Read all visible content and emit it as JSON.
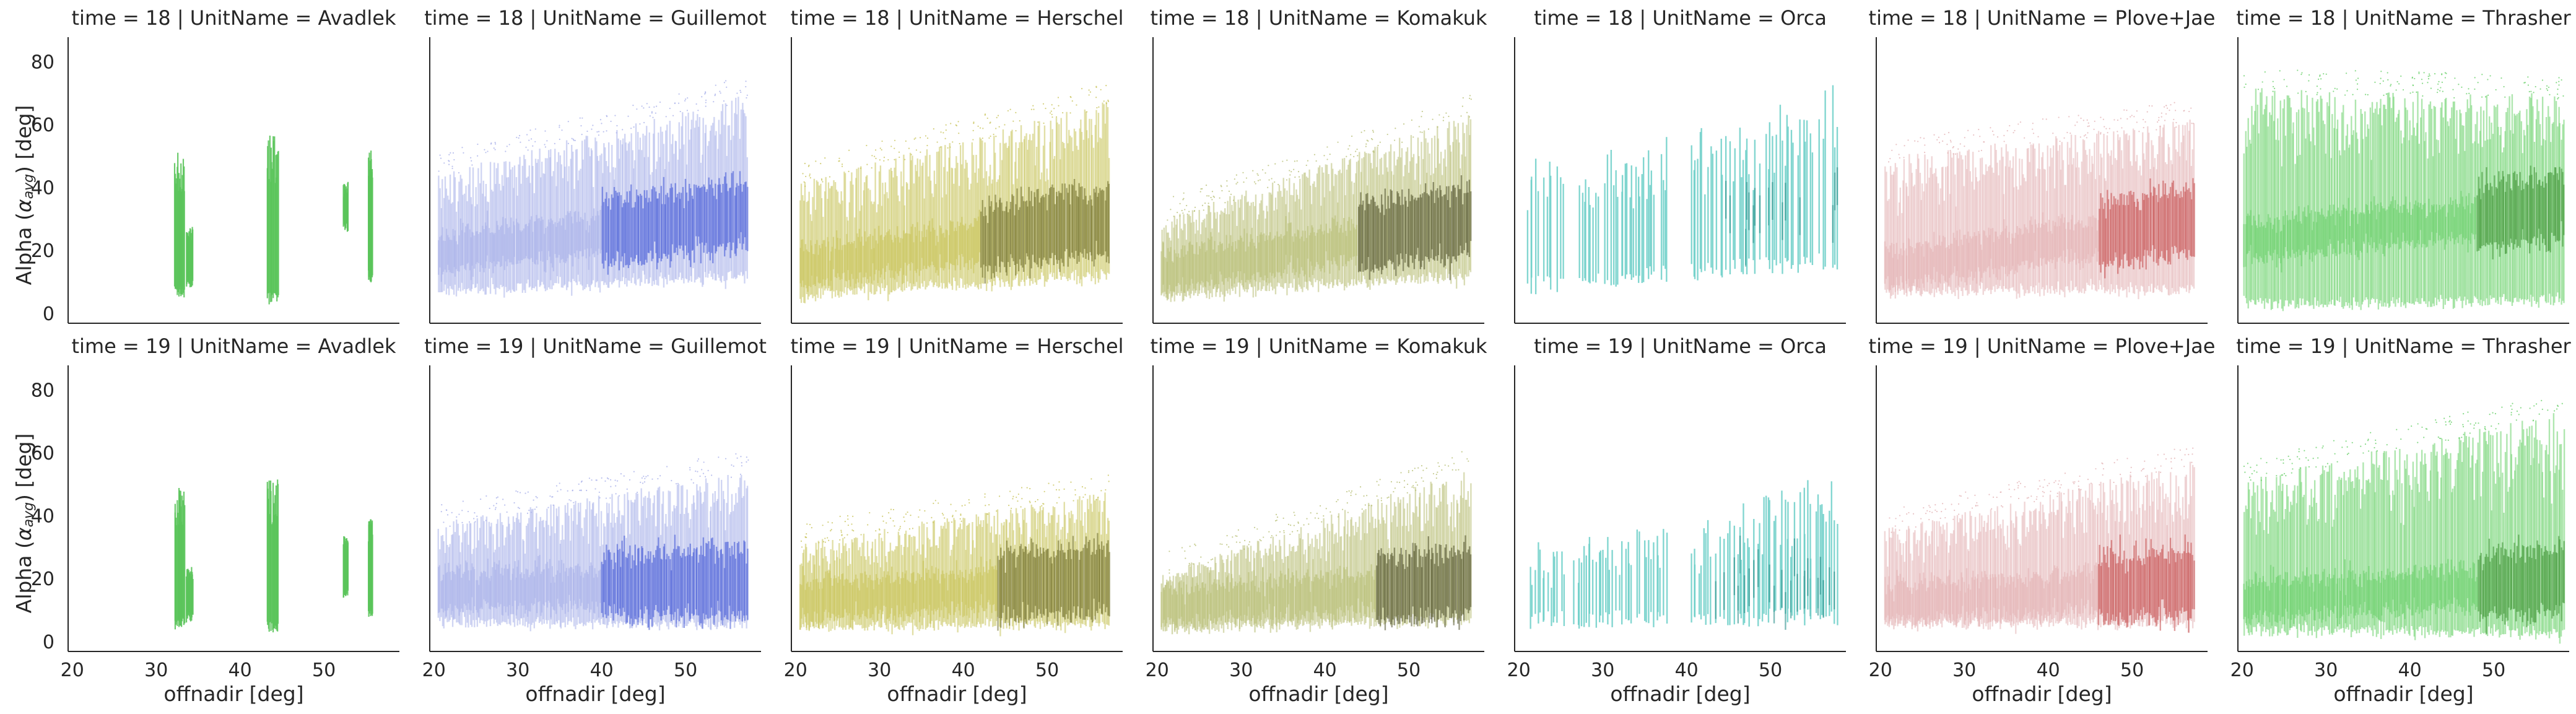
{
  "chart_data": {
    "type": "scatter",
    "description_free": true,
    "xlabel": "offnadir [deg]",
    "ylabel_prefix": "Alpha (",
    "ylabel_symbol": "α",
    "ylabel_sub": "avg",
    "ylabel_suffix": ") [deg]",
    "xlim": [
      19.5,
      59
    ],
    "ylim": [
      -3,
      88
    ],
    "xticks": [
      20,
      30,
      40,
      50
    ],
    "yticks": [
      0,
      20,
      40,
      60,
      80
    ],
    "rows": [
      {
        "time": 18,
        "title_prefix": "time = 18 | UnitName = "
      },
      {
        "time": 19,
        "title_prefix": "time = 19 | UnitName = "
      }
    ],
    "panels": [
      {
        "unit": "Avadlek",
        "color": "#5bc45b",
        "dark": "#2e8a2e",
        "t18": {
          "clusters": [
            {
              "x0": 32.2,
              "x1": 33.4,
              "lo": 5,
              "hi": 52,
              "mid": 24
            },
            {
              "x0": 33.6,
              "x1": 34.4,
              "lo": 8,
              "hi": 28,
              "mid": 18
            },
            {
              "x0": 43.2,
              "x1": 44.6,
              "lo": 3,
              "hi": 57,
              "mid": 26
            },
            {
              "x0": 52.3,
              "x1": 52.9,
              "lo": 26,
              "hi": 42,
              "mid": 32
            },
            {
              "x0": 55.3,
              "x1": 55.8,
              "lo": 10,
              "hi": 52,
              "mid": 28
            }
          ]
        },
        "t19": {
          "clusters": [
            {
              "x0": 32.2,
              "x1": 33.4,
              "lo": 4,
              "hi": 50,
              "mid": 20
            },
            {
              "x0": 33.6,
              "x1": 34.4,
              "lo": 6,
              "hi": 24,
              "mid": 15
            },
            {
              "x0": 43.2,
              "x1": 44.6,
              "lo": 3,
              "hi": 52,
              "mid": 22
            },
            {
              "x0": 52.3,
              "x1": 52.9,
              "lo": 14,
              "hi": 34,
              "mid": 24
            },
            {
              "x0": 55.3,
              "x1": 55.8,
              "lo": 8,
              "hi": 40,
              "mid": 22
            }
          ]
        }
      },
      {
        "unit": "Guillemot",
        "color": "#aab2ea",
        "dark": "#3f56d6",
        "t18": {
          "band": {
            "x0": 20.5,
            "x1": 57.5,
            "lo": [
              7,
              12
            ],
            "hi": [
              45,
              70
            ],
            "mid": [
              18,
              30
            ],
            "dense_from": 40
          }
        },
        "t19": {
          "band": {
            "x0": 20.5,
            "x1": 57.5,
            "lo": [
              6,
              6
            ],
            "hi": [
              38,
              55
            ],
            "mid": [
              15,
              17
            ],
            "dense_from": 40
          }
        }
      },
      {
        "unit": "Herschel",
        "color": "#c9c45c",
        "dark": "#6b6a25",
        "t18": {
          "band": {
            "x0": 20.5,
            "x1": 57.5,
            "lo": [
              6,
              12
            ],
            "hi": [
              42,
              68
            ],
            "mid": [
              14,
              28
            ],
            "dense_from": 42
          }
        },
        "t19": {
          "band": {
            "x0": 20.5,
            "x1": 57.5,
            "lo": [
              5,
              6
            ],
            "hi": [
              32,
              48
            ],
            "mid": [
              12,
              18
            ],
            "dense_from": 44
          }
        }
      },
      {
        "unit": "Komakuk",
        "color": "#b9c078",
        "dark": "#4c4f26",
        "t18": {
          "band": {
            "x0": 20.5,
            "x1": 57.5,
            "lo": [
              6,
              12
            ],
            "hi": [
              30,
              64
            ],
            "mid": [
              12,
              28
            ],
            "dense_from": 44
          }
        },
        "t19": {
          "band": {
            "x0": 20.5,
            "x1": 57.5,
            "lo": [
              5,
              7
            ],
            "hi": [
              22,
              56
            ],
            "mid": [
              10,
              17
            ],
            "dense_from": 46
          }
        }
      },
      {
        "unit": "Orca",
        "color": "#6ccfc8",
        "dark": "#2b8f8a",
        "t18": {
          "strips": {
            "x0": 21,
            "x1": 58,
            "lo": [
              6,
              14
            ],
            "hi": [
              50,
              74
            ],
            "mid": [
              26,
              34
            ],
            "gaps": [
              [
                25.5,
                26.5
              ],
              [
                37.8,
                40.5
              ]
            ]
          }
        },
        "t19": {
          "strips": {
            "x0": 21,
            "x1": 58,
            "lo": [
              4,
              5
            ],
            "hi": [
              32,
              55
            ],
            "mid": [
              12,
              18
            ],
            "gaps": [
              [
                25.5,
                26.5
              ],
              [
                37.8,
                40.5
              ]
            ]
          }
        }
      },
      {
        "unit": "Plove+Jae",
        "color": "#e4b4b6",
        "dark": "#c44a4a",
        "t18": {
          "band": {
            "x0": 20.5,
            "x1": 57.5,
            "lo": [
              7,
              8
            ],
            "hi": [
              50,
              62
            ],
            "mid": [
              13,
              28
            ],
            "dense_from": 46
          }
        },
        "t19": {
          "band": {
            "x0": 20.5,
            "x1": 57.5,
            "lo": [
              6,
              6
            ],
            "hi": [
              36,
              58
            ],
            "mid": [
              11,
              17
            ],
            "dense_from": 46
          }
        }
      },
      {
        "unit": "Thrasher",
        "color": "#6cd16c",
        "dark": "#3b8f2f",
        "t18": {
          "band": {
            "x0": 20.2,
            "x1": 58.5,
            "lo": [
              3,
              4
            ],
            "hi": [
              72,
              70
            ],
            "mid": [
              22,
              32
            ],
            "dense_from": 48
          }
        },
        "t19": {
          "band": {
            "x0": 20.2,
            "x1": 58.5,
            "lo": [
              4,
              3
            ],
            "hi": [
              52,
              74
            ],
            "mid": [
              12,
              18
            ],
            "dense_from": 48
          }
        }
      }
    ]
  }
}
